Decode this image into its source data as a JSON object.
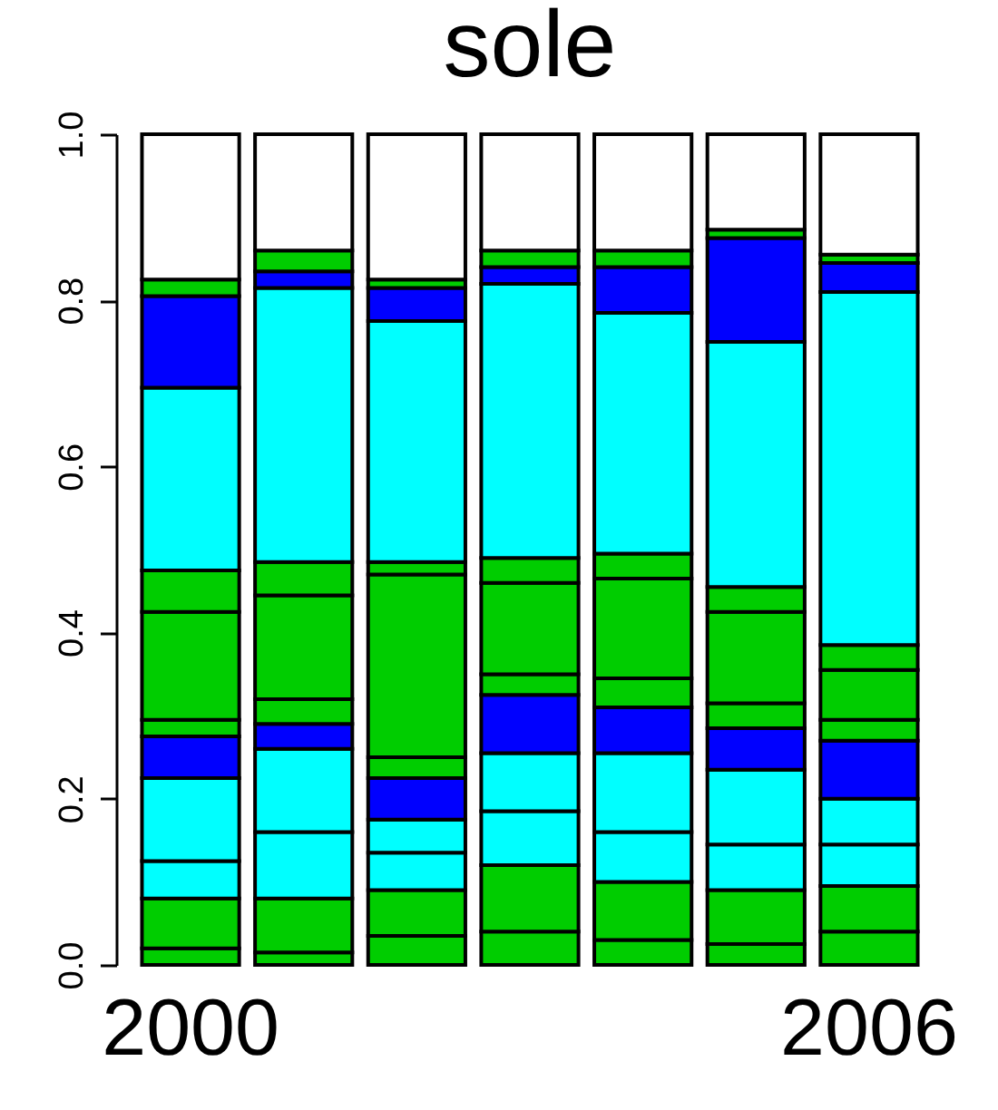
{
  "chart_data": {
    "type": "bar",
    "title": "sole",
    "stacked": true,
    "categories": [
      "2000",
      null,
      null,
      null,
      null,
      null,
      "2006"
    ],
    "series": [
      {
        "color": "#00cd00",
        "values": [
          0.02,
          0.015,
          0.035,
          0.04,
          0.03,
          0.025,
          0.04
        ]
      },
      {
        "color": "#00cd00",
        "values": [
          0.06,
          0.065,
          0.055,
          0.08,
          0.07,
          0.065,
          0.055
        ]
      },
      {
        "color": "#00ffff",
        "values": [
          0.045,
          0.08,
          0.045,
          0.065,
          0.06,
          0.055,
          0.05
        ]
      },
      {
        "color": "#00ffff",
        "values": [
          0.1,
          0.1,
          0.04,
          0.07,
          0.095,
          0.09,
          0.055
        ]
      },
      {
        "color": "#0000ff",
        "values": [
          0.05,
          0.03,
          0.05,
          0.07,
          0.055,
          0.05,
          0.07
        ]
      },
      {
        "color": "#00cd00",
        "values": [
          0.02,
          0.03,
          0.025,
          0.025,
          0.035,
          0.03,
          0.025
        ]
      },
      {
        "color": "#00cd00",
        "values": [
          0.13,
          0.125,
          0.22,
          0.11,
          0.12,
          0.11,
          0.06
        ]
      },
      {
        "color": "#00cd00",
        "values": [
          0.05,
          0.04,
          0.015,
          0.03,
          0.03,
          0.03,
          0.03
        ]
      },
      {
        "color": "#00ffff",
        "values": [
          0.22,
          0.33,
          0.29,
          0.33,
          0.29,
          0.295,
          0.425
        ]
      },
      {
        "color": "#0000ff",
        "values": [
          0.11,
          0.02,
          0.04,
          0.02,
          0.055,
          0.125,
          0.035
        ]
      },
      {
        "color": "#00cd00",
        "values": [
          0.02,
          0.025,
          0.01,
          0.02,
          0.02,
          0.01,
          0.01
        ]
      },
      {
        "color": "#ffffff",
        "values": [
          0.175,
          0.14,
          0.175,
          0.14,
          0.14,
          0.115,
          0.145
        ]
      }
    ],
    "ylim": [
      0,
      1
    ],
    "yticks": [
      {
        "value": 0,
        "label": "0.0"
      },
      0.2,
      0.4,
      0.6,
      0.8,
      {
        "value": 1,
        "label": "1.0"
      }
    ],
    "grid": false,
    "legend": false
  }
}
